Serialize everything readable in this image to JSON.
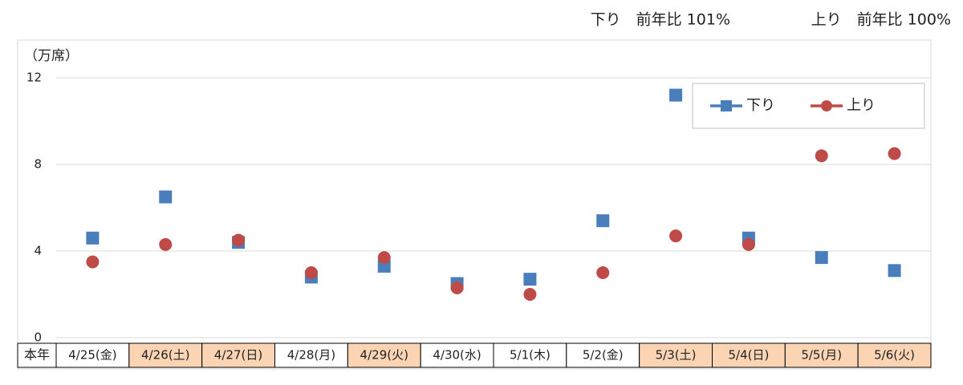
{
  "chart_data": {
    "type": "line",
    "annotations": [
      "下り　前年比 101%",
      "上り　前年比 100%"
    ],
    "y_label": "（万席）",
    "row_label": "本年",
    "categories": [
      "4/25(金)",
      "4/26(土)",
      "4/27(日)",
      "4/28(月)",
      "4/29(火)",
      "4/30(水)",
      "5/1(木)",
      "5/2(金)",
      "5/3(土)",
      "5/4(日)",
      "5/5(月)",
      "5/6(火)"
    ],
    "category_colors": [
      "#ffffff",
      "#fbd4b4",
      "#fbd4b4",
      "#ffffff",
      "#fbd4b4",
      "#ffffff",
      "#ffffff",
      "#ffffff",
      "#fbd4b4",
      "#fbd4b4",
      "#fbd4b4",
      "#fbd4b4"
    ],
    "series": [
      {
        "name": "下り",
        "color": "#4a7ebb",
        "marker": "square",
        "values": [
          4.6,
          6.5,
          4.4,
          2.8,
          3.3,
          2.5,
          2.7,
          5.4,
          11.2,
          4.6,
          3.7,
          3.1
        ]
      },
      {
        "name": "上り",
        "color": "#be4b48",
        "marker": "circle",
        "values": [
          3.5,
          4.3,
          4.5,
          3.0,
          3.7,
          2.3,
          2.0,
          3.0,
          4.7,
          4.3,
          8.4,
          8.5
        ]
      }
    ],
    "ylim": [
      0,
      12
    ],
    "yticks": [
      0,
      4,
      8,
      12
    ],
    "grid": true,
    "legend": "upper right"
  }
}
